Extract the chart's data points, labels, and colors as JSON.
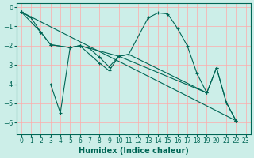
{
  "xlabel": "Humidex (Indice chaleur)",
  "bg_color": "#cceee8",
  "line_color": "#006655",
  "grid_color": "#ffaaaa",
  "xlim": [
    -0.5,
    23.5
  ],
  "ylim": [
    -6.6,
    0.2
  ],
  "xticks": [
    0,
    1,
    2,
    3,
    4,
    5,
    6,
    7,
    8,
    9,
    10,
    11,
    12,
    13,
    14,
    15,
    16,
    17,
    18,
    19,
    20,
    21,
    22,
    23
  ],
  "yticks": [
    0,
    -1,
    -2,
    -3,
    -4,
    -5,
    -6
  ],
  "line1": [
    [
      0,
      -0.25
    ],
    [
      1,
      -0.55
    ],
    [
      2,
      -1.3
    ],
    [
      3,
      -1.95
    ],
    [
      5,
      -2.1
    ],
    [
      6,
      -2.0
    ],
    [
      7,
      -2.15
    ],
    [
      8,
      -2.6
    ],
    [
      9,
      -3.1
    ],
    [
      10,
      -2.55
    ],
    [
      11,
      -2.45
    ],
    [
      13,
      -0.55
    ],
    [
      14,
      -0.3
    ],
    [
      15,
      -0.35
    ],
    [
      16,
      -1.1
    ],
    [
      17,
      -2.0
    ],
    [
      18,
      -3.45
    ],
    [
      19,
      -4.45
    ]
  ],
  "line2": [
    [
      0,
      -0.25
    ],
    [
      2,
      -1.3
    ],
    [
      3,
      -1.95
    ],
    [
      5,
      -2.1
    ],
    [
      6,
      -2.0
    ],
    [
      10,
      -2.55
    ],
    [
      11,
      -2.45
    ],
    [
      19,
      -4.45
    ],
    [
      20,
      -3.15
    ],
    [
      21,
      -4.95
    ],
    [
      22,
      -5.9
    ]
  ],
  "line3": [
    [
      3,
      -4.0
    ],
    [
      4,
      -5.5
    ],
    [
      5,
      -2.1
    ],
    [
      6,
      -2.0
    ],
    [
      7,
      -2.45
    ],
    [
      8,
      -2.9
    ],
    [
      9,
      -3.3
    ],
    [
      10,
      -2.55
    ],
    [
      19,
      -4.45
    ],
    [
      20,
      -3.15
    ],
    [
      21,
      -4.95
    ],
    [
      22,
      -5.9
    ]
  ],
  "line4": [
    [
      0,
      -0.25
    ],
    [
      22,
      -5.9
    ]
  ]
}
